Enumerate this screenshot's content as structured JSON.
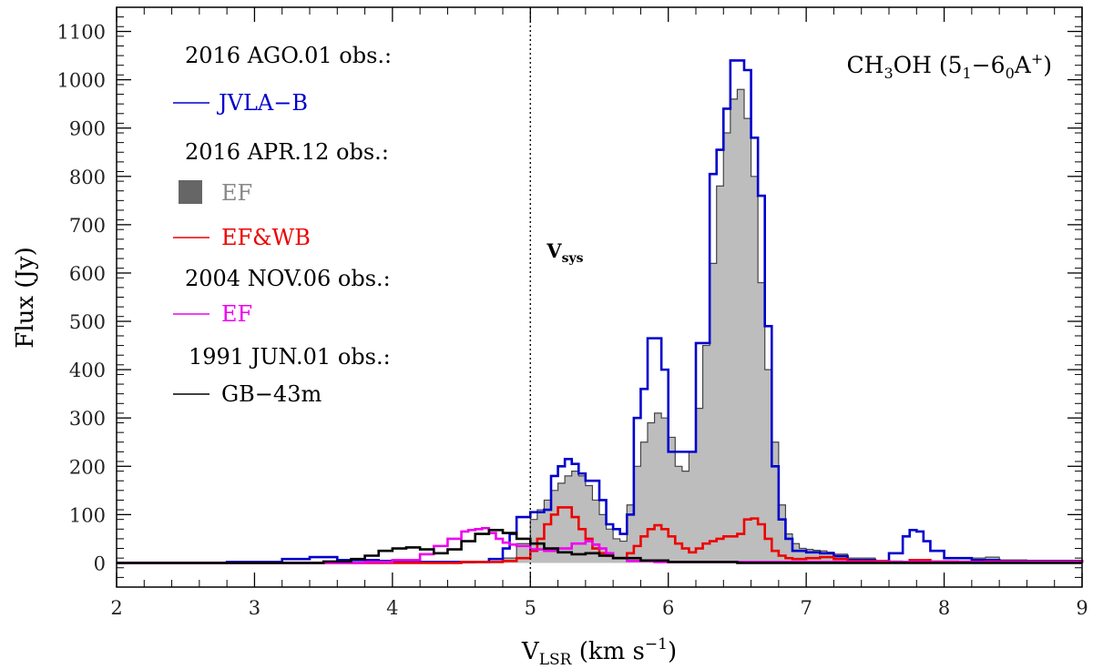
{
  "chart_data": {
    "type": "line",
    "title": "CH3OH (51−60A+)",
    "title_parts": {
      "main": "CH",
      "sub1": "3",
      "mid": "OH (5",
      "sub2": "1",
      "dash": "−6",
      "sub3": "0",
      "a": "A",
      "sup": "+",
      "close": ")"
    },
    "xlabel": "V_LSR (km s^-1)",
    "xlabel_parts": {
      "v": "V",
      "sub": "LSR",
      "unit": " (km s",
      "sup": "−1",
      "close": ")"
    },
    "ylabel": "Flux (Jy)",
    "xlim": [
      2,
      9
    ],
    "ylim": [
      -50,
      1150
    ],
    "x_ticks": [
      2,
      3,
      4,
      5,
      6,
      7,
      8,
      9
    ],
    "y_ticks": [
      0,
      100,
      200,
      300,
      400,
      500,
      600,
      700,
      800,
      900,
      1000,
      1100
    ],
    "vsys": {
      "x": 5.0,
      "label": "V",
      "sub": "sys"
    },
    "legend_groups": [
      {
        "heading": "2016 AGO.01 obs.:",
        "entries": [
          {
            "label": "JVLA−B",
            "series": "JVLA-B"
          }
        ]
      },
      {
        "heading": "2016 APR.12 obs.:",
        "entries": [
          {
            "label": "EF",
            "series": "EF-2016",
            "filled": true
          },
          {
            "label": "EF&WB",
            "series": "EF&WB"
          }
        ]
      },
      {
        "heading": "2004 NOV.06 obs.:",
        "entries": [
          {
            "label": "EF",
            "series": "EF-2004"
          }
        ]
      },
      {
        "heading": "1991 JUN.01 obs.:",
        "entries": [
          {
            "label": "GB−43m",
            "series": "GB-43m"
          }
        ]
      }
    ],
    "series": [
      {
        "name": "EF-2016",
        "style": "filled-step",
        "color": "#bdbdbd",
        "edge": "#444444",
        "points": [
          [
            2.0,
            0
          ],
          [
            4.6,
            2
          ],
          [
            4.8,
            10
          ],
          [
            4.9,
            40
          ],
          [
            5.0,
            90
          ],
          [
            5.05,
            110
          ],
          [
            5.1,
            130
          ],
          [
            5.15,
            150
          ],
          [
            5.2,
            165
          ],
          [
            5.25,
            180
          ],
          [
            5.3,
            190
          ],
          [
            5.35,
            180
          ],
          [
            5.4,
            160
          ],
          [
            5.45,
            130
          ],
          [
            5.5,
            100
          ],
          [
            5.55,
            70
          ],
          [
            5.6,
            50
          ],
          [
            5.65,
            45
          ],
          [
            5.7,
            120
          ],
          [
            5.75,
            200
          ],
          [
            5.8,
            250
          ],
          [
            5.85,
            290
          ],
          [
            5.9,
            310
          ],
          [
            5.95,
            300
          ],
          [
            6.0,
            260
          ],
          [
            6.05,
            200
          ],
          [
            6.1,
            190
          ],
          [
            6.15,
            230
          ],
          [
            6.2,
            320
          ],
          [
            6.25,
            450
          ],
          [
            6.3,
            620
          ],
          [
            6.35,
            780
          ],
          [
            6.4,
            890
          ],
          [
            6.45,
            960
          ],
          [
            6.5,
            980
          ],
          [
            6.55,
            920
          ],
          [
            6.6,
            800
          ],
          [
            6.65,
            580
          ],
          [
            6.7,
            400
          ],
          [
            6.75,
            250
          ],
          [
            6.8,
            120
          ],
          [
            6.85,
            60
          ],
          [
            6.9,
            40
          ],
          [
            6.95,
            30
          ],
          [
            7.0,
            28
          ],
          [
            7.05,
            26
          ],
          [
            7.1,
            25
          ],
          [
            7.15,
            22
          ],
          [
            7.2,
            18
          ],
          [
            7.3,
            10
          ],
          [
            7.5,
            4
          ],
          [
            7.7,
            2
          ],
          [
            8.0,
            4
          ],
          [
            8.2,
            10
          ],
          [
            8.3,
            12
          ],
          [
            8.4,
            6
          ],
          [
            8.6,
            3
          ],
          [
            9.0,
            0
          ]
        ]
      },
      {
        "name": "JVLA-B",
        "style": "step",
        "color": "#0000cc",
        "points": [
          [
            2.0,
            0
          ],
          [
            2.8,
            2
          ],
          [
            3.2,
            8
          ],
          [
            3.4,
            12
          ],
          [
            3.6,
            6
          ],
          [
            3.9,
            4
          ],
          [
            4.2,
            2
          ],
          [
            4.5,
            2
          ],
          [
            4.7,
            8
          ],
          [
            4.8,
            30
          ],
          [
            4.85,
            60
          ],
          [
            4.9,
            95
          ],
          [
            5.0,
            105
          ],
          [
            5.1,
            110
          ],
          [
            5.15,
            180
          ],
          [
            5.2,
            200
          ],
          [
            5.25,
            215
          ],
          [
            5.3,
            205
          ],
          [
            5.35,
            185
          ],
          [
            5.4,
            170
          ],
          [
            5.5,
            130
          ],
          [
            5.55,
            80
          ],
          [
            5.6,
            70
          ],
          [
            5.65,
            60
          ],
          [
            5.7,
            100
          ],
          [
            5.75,
            300
          ],
          [
            5.8,
            360
          ],
          [
            5.85,
            465
          ],
          [
            5.9,
            465
          ],
          [
            5.95,
            400
          ],
          [
            6.0,
            230
          ],
          [
            6.15,
            230
          ],
          [
            6.2,
            455
          ],
          [
            6.3,
            805
          ],
          [
            6.35,
            855
          ],
          [
            6.4,
            940
          ],
          [
            6.45,
            1040
          ],
          [
            6.5,
            1040
          ],
          [
            6.55,
            1020
          ],
          [
            6.6,
            880
          ],
          [
            6.65,
            760
          ],
          [
            6.7,
            490
          ],
          [
            6.75,
            200
          ],
          [
            6.8,
            90
          ],
          [
            6.85,
            50
          ],
          [
            6.9,
            25
          ],
          [
            7.0,
            22
          ],
          [
            7.1,
            20
          ],
          [
            7.2,
            14
          ],
          [
            7.3,
            6
          ],
          [
            7.5,
            4
          ],
          [
            7.6,
            20
          ],
          [
            7.7,
            55
          ],
          [
            7.75,
            68
          ],
          [
            7.8,
            65
          ],
          [
            7.85,
            45
          ],
          [
            7.9,
            25
          ],
          [
            8.0,
            10
          ],
          [
            8.2,
            6
          ],
          [
            8.4,
            4
          ],
          [
            9.0,
            0
          ]
        ]
      },
      {
        "name": "EF&WB",
        "style": "step",
        "color": "#ee0000",
        "points": [
          [
            2.0,
            0
          ],
          [
            4.5,
            2
          ],
          [
            4.8,
            4
          ],
          [
            4.9,
            10
          ],
          [
            5.0,
            25
          ],
          [
            5.05,
            50
          ],
          [
            5.1,
            80
          ],
          [
            5.15,
            100
          ],
          [
            5.2,
            115
          ],
          [
            5.25,
            115
          ],
          [
            5.3,
            95
          ],
          [
            5.35,
            70
          ],
          [
            5.4,
            50
          ],
          [
            5.45,
            30
          ],
          [
            5.5,
            20
          ],
          [
            5.55,
            15
          ],
          [
            5.6,
            10
          ],
          [
            5.65,
            10
          ],
          [
            5.7,
            20
          ],
          [
            5.75,
            35
          ],
          [
            5.8,
            55
          ],
          [
            5.85,
            70
          ],
          [
            5.9,
            78
          ],
          [
            5.95,
            70
          ],
          [
            6.0,
            55
          ],
          [
            6.05,
            40
          ],
          [
            6.1,
            30
          ],
          [
            6.15,
            22
          ],
          [
            6.2,
            30
          ],
          [
            6.25,
            40
          ],
          [
            6.3,
            45
          ],
          [
            6.35,
            50
          ],
          [
            6.4,
            55
          ],
          [
            6.45,
            55
          ],
          [
            6.5,
            60
          ],
          [
            6.55,
            90
          ],
          [
            6.6,
            92
          ],
          [
            6.65,
            80
          ],
          [
            6.7,
            50
          ],
          [
            6.75,
            25
          ],
          [
            6.8,
            15
          ],
          [
            6.85,
            10
          ],
          [
            6.9,
            8
          ],
          [
            7.0,
            10
          ],
          [
            7.1,
            12
          ],
          [
            7.2,
            8
          ],
          [
            7.3,
            4
          ],
          [
            7.6,
            2
          ],
          [
            7.75,
            6
          ],
          [
            7.9,
            3
          ],
          [
            8.1,
            2
          ],
          [
            8.3,
            3
          ],
          [
            9.0,
            0
          ]
        ]
      },
      {
        "name": "EF-2004",
        "style": "step",
        "color": "#ee00ee",
        "points": [
          [
            2.0,
            0
          ],
          [
            3.8,
            2
          ],
          [
            4.0,
            6
          ],
          [
            4.2,
            18
          ],
          [
            4.3,
            35
          ],
          [
            4.4,
            50
          ],
          [
            4.5,
            65
          ],
          [
            4.55,
            68
          ],
          [
            4.6,
            70
          ],
          [
            4.65,
            72
          ],
          [
            4.7,
            62
          ],
          [
            4.75,
            50
          ],
          [
            4.8,
            42
          ],
          [
            4.85,
            38
          ],
          [
            4.9,
            35
          ],
          [
            5.0,
            28
          ],
          [
            5.1,
            25
          ],
          [
            5.2,
            30
          ],
          [
            5.3,
            40
          ],
          [
            5.4,
            45
          ],
          [
            5.45,
            38
          ],
          [
            5.5,
            30
          ],
          [
            5.55,
            20
          ],
          [
            5.6,
            10
          ],
          [
            5.7,
            4
          ],
          [
            5.9,
            2
          ],
          [
            9.0,
            0
          ]
        ]
      },
      {
        "name": "GB-43m",
        "style": "step",
        "color": "#000000",
        "points": [
          [
            2.0,
            0
          ],
          [
            3.5,
            3
          ],
          [
            3.7,
            8
          ],
          [
            3.8,
            15
          ],
          [
            3.9,
            25
          ],
          [
            4.0,
            30
          ],
          [
            4.1,
            32
          ],
          [
            4.2,
            28
          ],
          [
            4.3,
            20
          ],
          [
            4.4,
            28
          ],
          [
            4.5,
            45
          ],
          [
            4.6,
            60
          ],
          [
            4.7,
            68
          ],
          [
            4.8,
            62
          ],
          [
            4.9,
            50
          ],
          [
            5.0,
            40
          ],
          [
            5.1,
            30
          ],
          [
            5.2,
            22
          ],
          [
            5.3,
            18
          ],
          [
            5.4,
            20
          ],
          [
            5.5,
            15
          ],
          [
            5.6,
            10
          ],
          [
            5.8,
            5
          ],
          [
            6.0,
            2
          ],
          [
            6.5,
            0
          ],
          [
            7.0,
            0
          ],
          [
            9.0,
            0
          ]
        ]
      }
    ],
    "grid": false,
    "legend_position": "top-left"
  }
}
